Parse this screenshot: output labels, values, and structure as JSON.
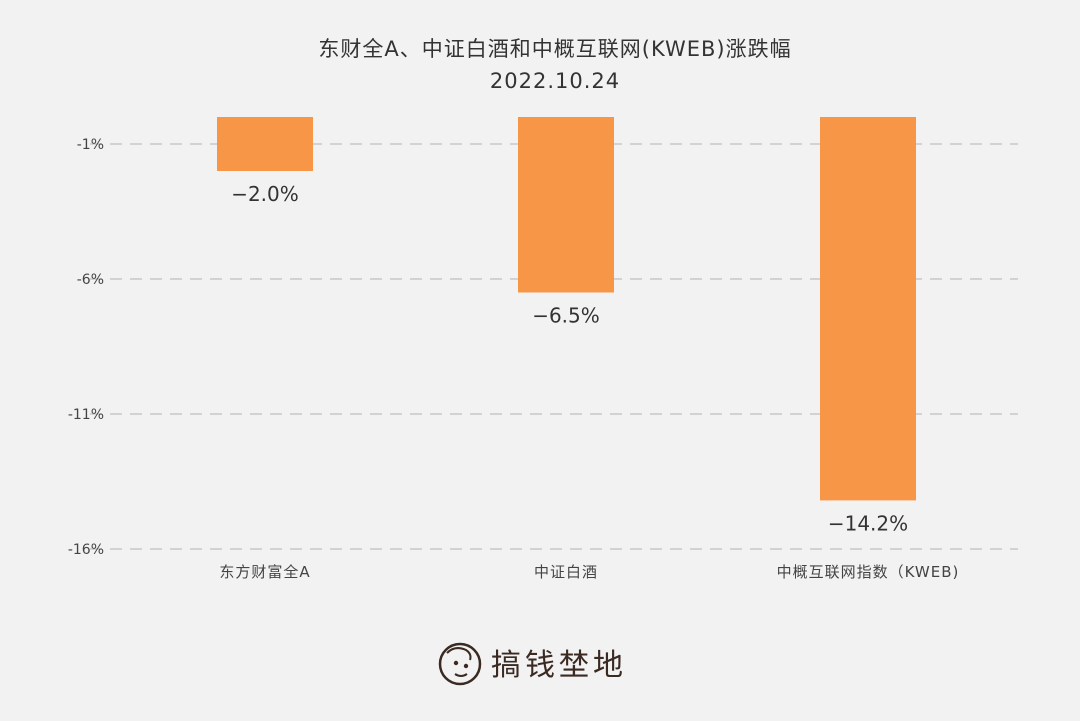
{
  "chart_data": {
    "type": "bar",
    "title": "东财全A、中证白酒和中概互联网(KWEB)涨跌幅",
    "subtitle": "2022.10.24",
    "categories": [
      "东方财富全A",
      "中证白酒",
      "中概互联网指数（KWEB)"
    ],
    "values": [
      -2.0,
      -6.5,
      -14.2
    ],
    "value_labels": [
      "−2.0%",
      "−6.5%",
      "−14.2%"
    ],
    "yticks": [
      -1,
      -6,
      -11,
      -16
    ],
    "ytick_labels": [
      "-1%",
      "-6%",
      "-11%",
      "-16%"
    ],
    "ylim": [
      -16,
      0
    ],
    "grid": true,
    "legend": "none",
    "bar_color": "#f79646",
    "grid_color": "#c8c8c8"
  },
  "brand": {
    "name": "搞钱埜地",
    "logo_icon": "cartoon-face-icon"
  }
}
